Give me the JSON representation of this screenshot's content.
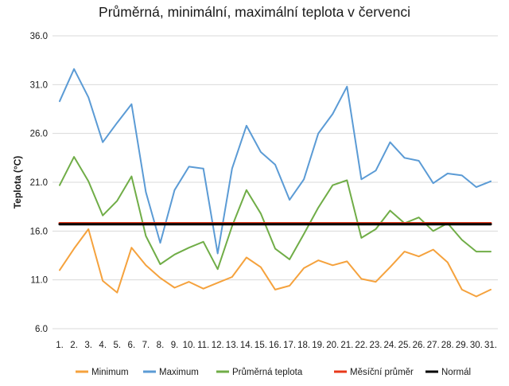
{
  "chart_data": {
    "type": "line",
    "title": "Průměrná, minimální, maximální teplota v červenci",
    "ylabel": "Teplota (°C)",
    "xlabel": "",
    "ylim": [
      6.0,
      36.0
    ],
    "yticks": [
      "6.0",
      "11.0",
      "16.0",
      "21.0",
      "26.0",
      "31.0",
      "36.0"
    ],
    "ytick_values": [
      6,
      11,
      16,
      21,
      26,
      31,
      36
    ],
    "categories": [
      "1.",
      "2.",
      "3.",
      "4.",
      "5.",
      "6.",
      "7.",
      "8.",
      "9.",
      "10.",
      "11.",
      "12.",
      "13.",
      "14.",
      "15.",
      "16.",
      "17.",
      "18.",
      "19.",
      "20.",
      "21.",
      "22.",
      "23.",
      "24.",
      "25.",
      "26.",
      "27.",
      "28.",
      "29.",
      "30.",
      "31."
    ],
    "grid": true,
    "legend_position": "bottom",
    "series": [
      {
        "name": "Minimum",
        "color": "#F5A23D",
        "values": [
          12.0,
          14.2,
          16.2,
          10.9,
          9.7,
          14.3,
          12.5,
          11.2,
          10.2,
          10.8,
          10.1,
          10.7,
          11.3,
          13.3,
          12.3,
          10.0,
          10.4,
          12.2,
          13.0,
          12.5,
          12.9,
          11.1,
          10.8,
          12.3,
          13.9,
          13.4,
          14.1,
          12.8,
          10.0,
          9.3,
          10.0
        ]
      },
      {
        "name": "Maximum",
        "color": "#5B9BD5",
        "values": [
          29.3,
          32.6,
          29.7,
          25.1,
          27.1,
          29.0,
          20.0,
          14.8,
          20.2,
          22.6,
          22.4,
          13.7,
          22.4,
          26.8,
          24.1,
          22.8,
          19.2,
          21.3,
          26.0,
          28.0,
          30.8,
          21.3,
          22.2,
          25.1,
          23.5,
          23.2,
          20.9,
          21.9,
          21.7,
          20.5,
          21.1
        ]
      },
      {
        "name": "Průměrná teplota",
        "color": "#70AD47",
        "values": [
          20.7,
          23.6,
          21.1,
          17.6,
          19.1,
          21.6,
          15.5,
          12.6,
          13.6,
          14.3,
          14.9,
          12.1,
          16.5,
          20.2,
          17.8,
          14.2,
          13.1,
          15.7,
          18.4,
          20.7,
          21.2,
          15.3,
          16.2,
          18.1,
          16.8,
          17.4,
          16.0,
          16.8,
          15.1,
          13.9,
          13.9
        ]
      },
      {
        "name": "Měsíční průměr",
        "color": "#E8381A",
        "values": [
          16.8,
          16.8,
          16.8,
          16.8,
          16.8,
          16.8,
          16.8,
          16.8,
          16.8,
          16.8,
          16.8,
          16.8,
          16.8,
          16.8,
          16.8,
          16.8,
          16.8,
          16.8,
          16.8,
          16.8,
          16.8,
          16.8,
          16.8,
          16.8,
          16.8,
          16.8,
          16.8,
          16.8,
          16.8,
          16.8,
          16.8
        ]
      },
      {
        "name": "Normál",
        "color": "#000000",
        "values": [
          16.7,
          16.7,
          16.7,
          16.7,
          16.7,
          16.7,
          16.7,
          16.7,
          16.7,
          16.7,
          16.7,
          16.7,
          16.7,
          16.7,
          16.7,
          16.7,
          16.7,
          16.7,
          16.7,
          16.7,
          16.7,
          16.7,
          16.7,
          16.7,
          16.7,
          16.7,
          16.7,
          16.7,
          16.7,
          16.7,
          16.7
        ]
      }
    ]
  }
}
